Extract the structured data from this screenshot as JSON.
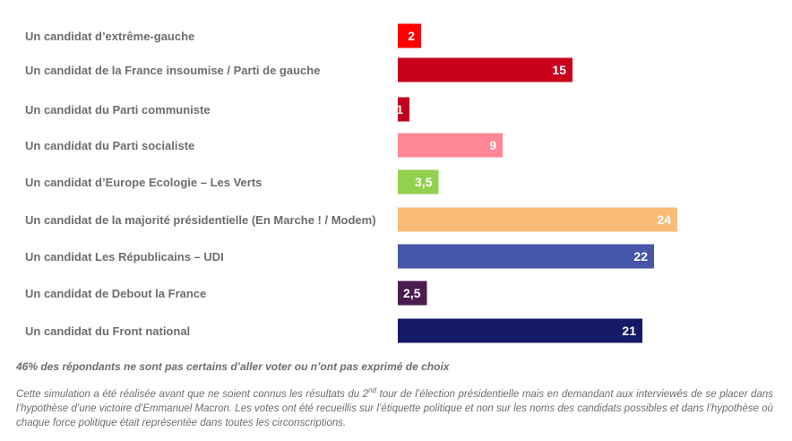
{
  "chart_data": {
    "type": "bar",
    "orientation": "horizontal",
    "categories": [
      "Un candidat d’extrême-gauche",
      "Un candidat de la France insoumise / Parti de gauche",
      "Un candidat du Parti communiste",
      "Un candidat du Parti socialiste",
      "Un candidat d’Europe Ecologie – Les Verts",
      "Un candidat de la majorité présidentielle (En Marche ! / Modem)",
      "Un candidat Les Républicains – UDI",
      "Un candidat de Debout la France",
      "Un candidat du Front national"
    ],
    "values": [
      2,
      15,
      1,
      9,
      3.5,
      24,
      22,
      2.5,
      21
    ],
    "value_labels": [
      "2",
      "15",
      "1",
      "9",
      "3,5",
      "24",
      "22",
      "2,5",
      "21"
    ],
    "colors": [
      "#ff0000",
      "#c8001a",
      "#c0001e",
      "#ff8795",
      "#92d050",
      "#f8bc78",
      "#4656a8",
      "#4a1d4e",
      "#161a66"
    ],
    "xlim": [
      0,
      24
    ],
    "title": "",
    "xlabel": "",
    "ylabel": "",
    "grid": false,
    "legend": "none"
  },
  "footer": {
    "note": "46% des répondants ne sont pas certains d’aller voter ou n’ont pas exprimé de choix",
    "disclaimer_part1": "Cette simulation a été réalisée avant que ne soient connus les résultats du 2",
    "disclaimer_sup": "nd",
    "disclaimer_part2": " tour de l’élection présidentielle mais en demandant aux interviewés de se placer dans l’hypothèse d’une victoire d’Emmanuel Macron. Les votes ont été recueillis sur l’étiquette politique et non sur les noms des candidats possibles et dans l’hypothèse où chaque force politique était représentée dans toutes les circonscriptions."
  }
}
